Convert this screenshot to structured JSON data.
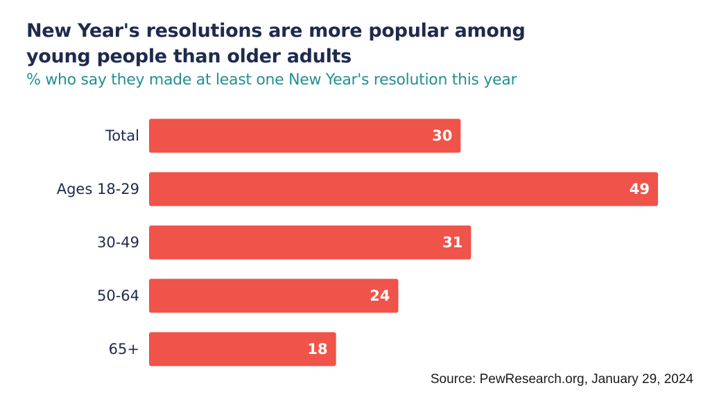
{
  "title": "New Year's resolutions are more popular among young people than older adults",
  "subtitle": "% who say they made at least one New Year's resolution this year",
  "source": "Source: PewResearch.org, January 29, 2024",
  "colors": {
    "bar": "#ef5349",
    "title": "#1f2a4d",
    "subtitle": "#23908f",
    "bar_label": "#ffffff"
  },
  "chart_data": {
    "type": "bar",
    "orientation": "horizontal",
    "categories": [
      "Total",
      "Ages 18-29",
      "30-49",
      "50-64",
      "65+"
    ],
    "values": [
      30,
      49,
      31,
      24,
      18
    ],
    "title": "New Year's resolutions are more popular among young people than older adults",
    "subtitle": "% who say they made at least one New Year's resolution this year",
    "xlim": [
      0,
      49
    ],
    "grid": false,
    "legend": "none",
    "data_labels": "inside-end"
  }
}
